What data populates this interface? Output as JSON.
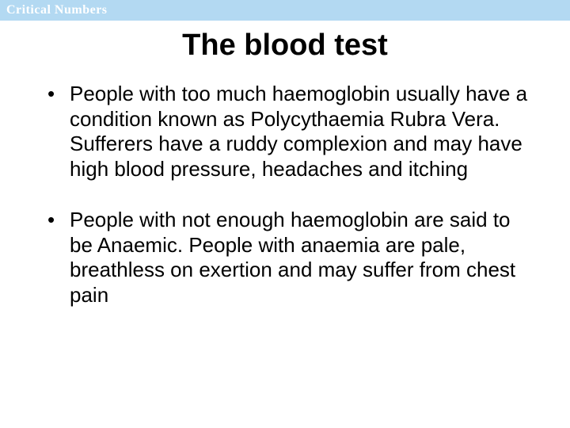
{
  "header": {
    "brand": "Critical Numbers",
    "bar_color": "#b3d9f2",
    "brand_color": "#ffffff",
    "brand_fontsize": 16
  },
  "slide": {
    "title": "The blood test",
    "title_fontsize": 38,
    "title_color": "#000000",
    "background_color": "#ffffff",
    "bullets": [
      "People with too much haemoglobin usually have a condition known as Polycythaemia Rubra Vera. Sufferers have a ruddy complexion and may have high blood pressure, headaches and itching",
      "People with not enough haemoglobin are said to be Anaemic. People with anaemia are pale, breathless on exertion and may suffer from chest pain"
    ],
    "body_fontsize": 26,
    "body_color": "#000000"
  }
}
